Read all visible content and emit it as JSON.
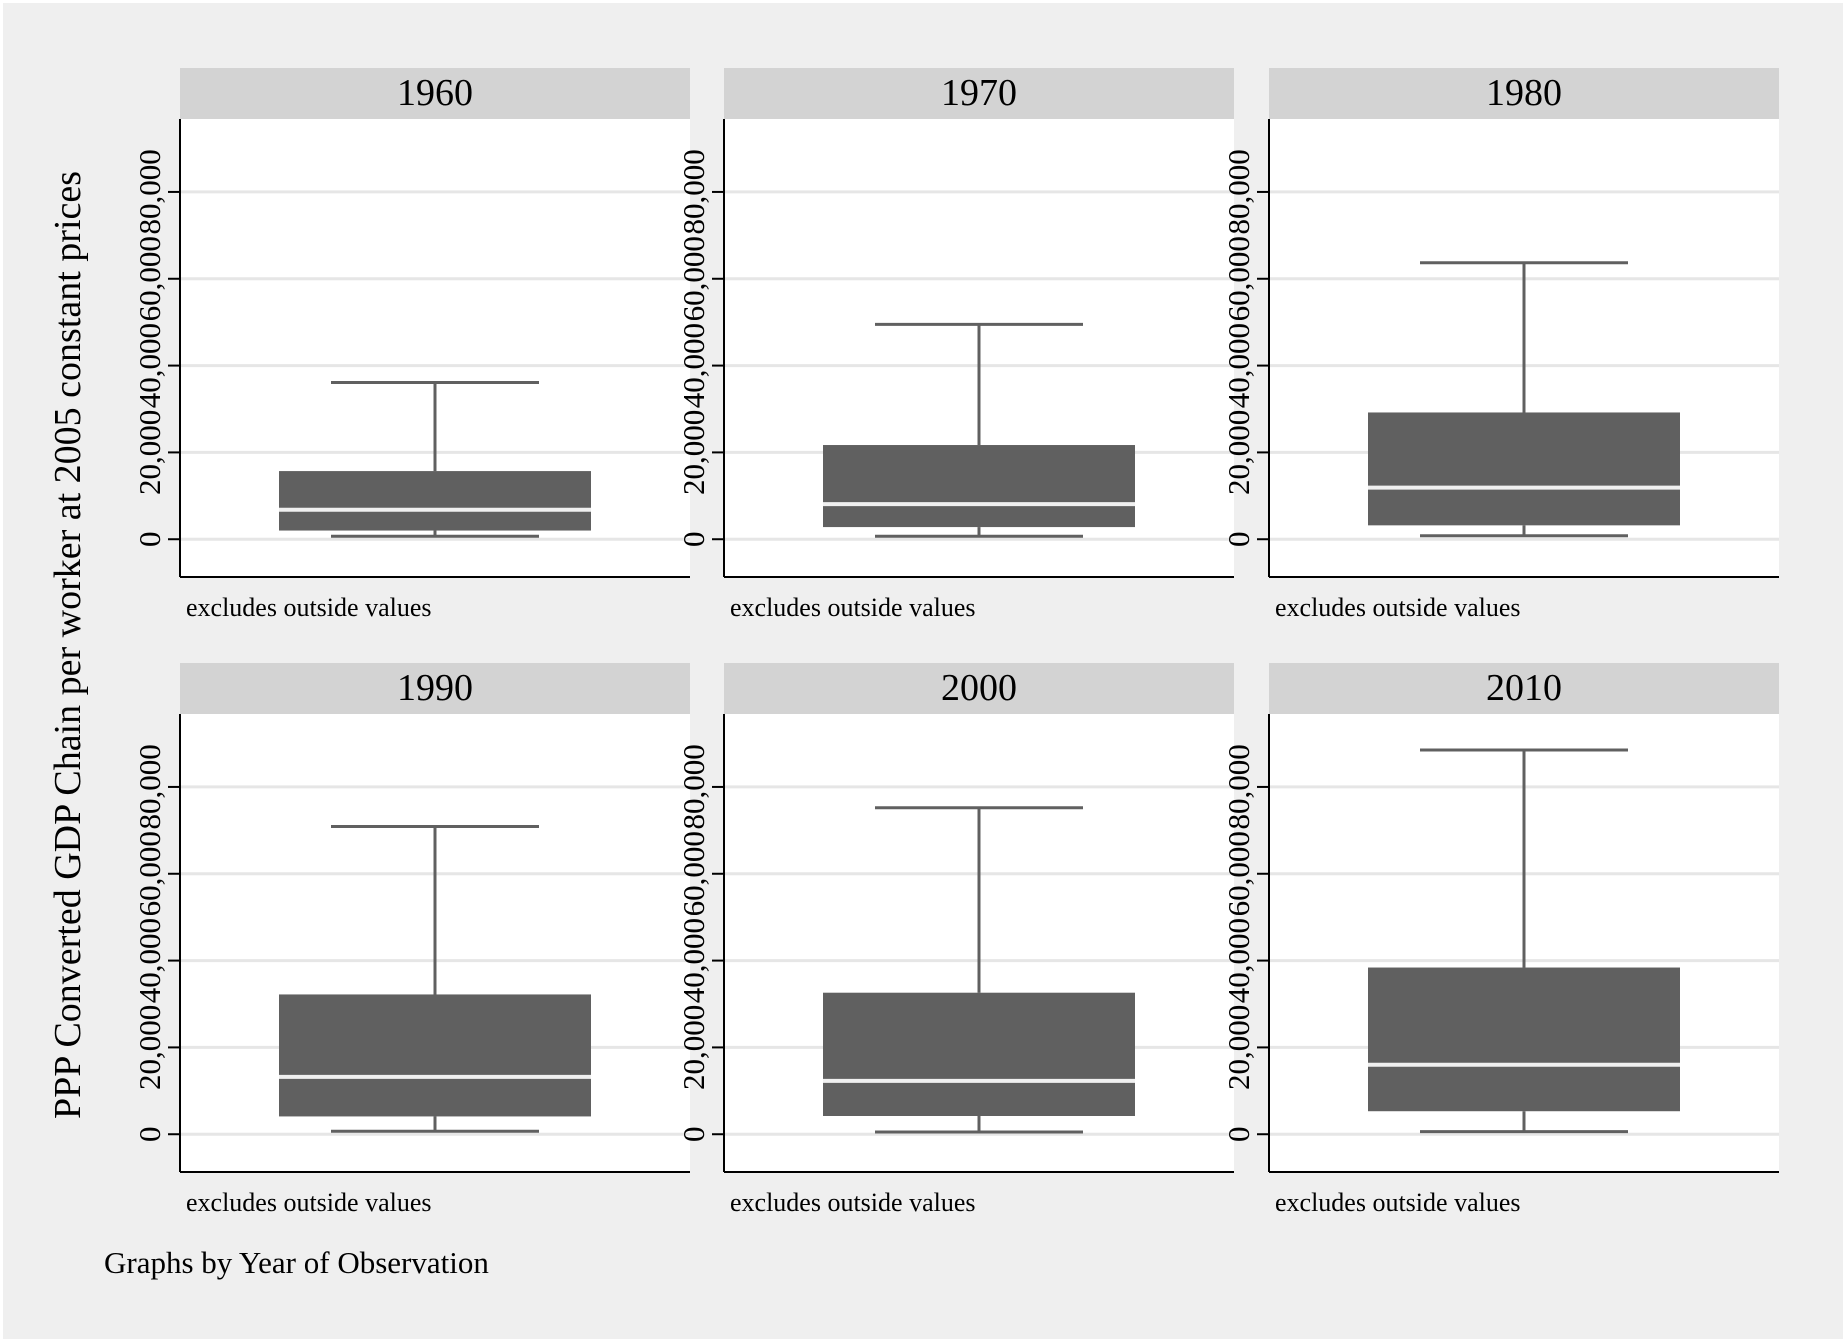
{
  "chart_data": {
    "type": "box",
    "ylabel": "PPP Converted GDP Chain per worker at 2005 constant prices",
    "yticks": [
      0,
      20000,
      40000,
      60000,
      80000
    ],
    "ytick_labels": [
      "0",
      "20,000",
      "40,000",
      "60,000",
      "80,000"
    ],
    "ylim": [
      -8700,
      96800
    ],
    "footnote": "Graphs by Year of Observation",
    "grid": true,
    "colors": {
      "outer_background": "#efefef",
      "plot_background": "#ffffff",
      "panel_header": "#d3d3d3",
      "box": "#606060",
      "median": "#f0f0f0",
      "gridline": "#e6e6e6",
      "axis": "#000000"
    },
    "panels": [
      {
        "title": "1960",
        "note": "excludes outside values",
        "lower_whisker": 700,
        "q1": 2000,
        "median": 6800,
        "q3": 15700,
        "upper_whisker": 36100
      },
      {
        "title": "1970",
        "note": "excludes outside values",
        "lower_whisker": 700,
        "q1": 2800,
        "median": 8100,
        "q3": 21700,
        "upper_whisker": 49500
      },
      {
        "title": "1980",
        "note": "excludes outside values",
        "lower_whisker": 800,
        "q1": 3200,
        "median": 11900,
        "q3": 29200,
        "upper_whisker": 63700
      },
      {
        "title": "1990",
        "note": "excludes outside values",
        "lower_whisker": 700,
        "q1": 4100,
        "median": 13200,
        "q3": 32200,
        "upper_whisker": 70900
      },
      {
        "title": "2000",
        "note": "excludes outside values",
        "lower_whisker": 500,
        "q1": 4200,
        "median": 12300,
        "q3": 32600,
        "upper_whisker": 75200
      },
      {
        "title": "2010",
        "note": "excludes outside values",
        "lower_whisker": 600,
        "q1": 5300,
        "median": 16000,
        "q3": 38400,
        "upper_whisker": 88500
      }
    ]
  }
}
